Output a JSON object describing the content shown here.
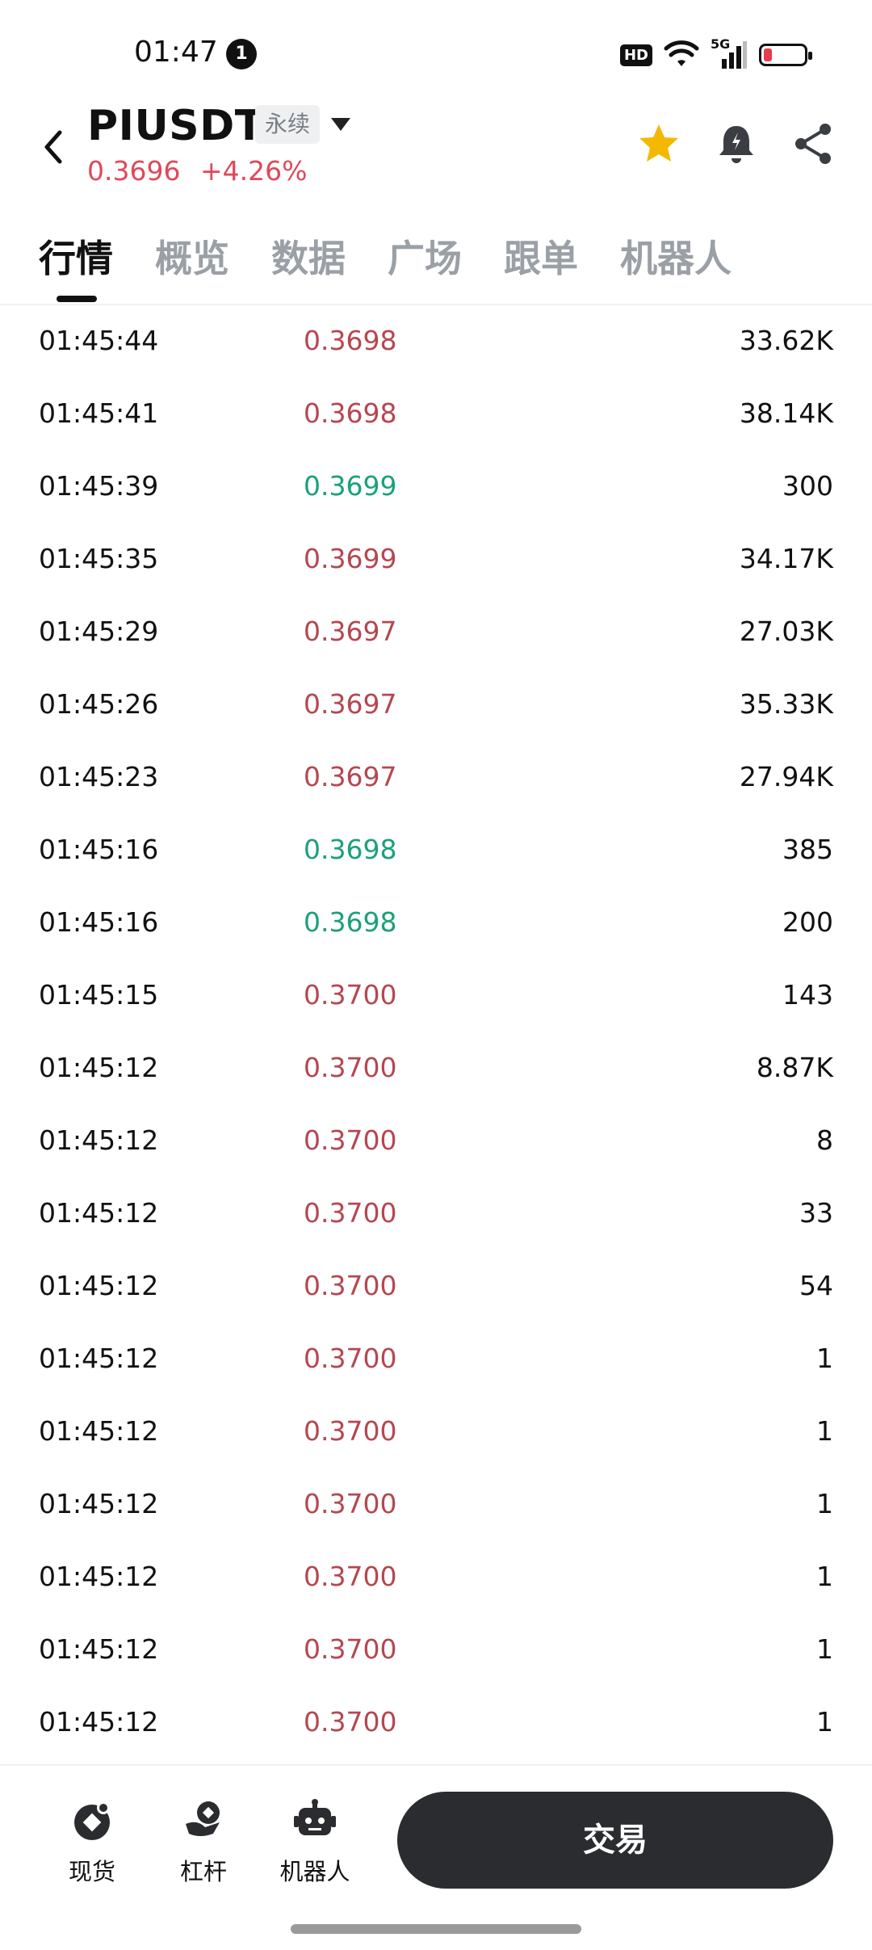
{
  "status": {
    "time": "01:47",
    "notification_count": "1",
    "hd": "HD",
    "network": "5G"
  },
  "header": {
    "symbol": "PIUSDT",
    "contract_type": "永续",
    "price": "0.3696",
    "change": "+4.26%"
  },
  "tabs": [
    "行情",
    "概览",
    "数据",
    "广场",
    "跟单",
    "机器人"
  ],
  "trades": [
    {
      "time": "01:45:44",
      "price": "0.3698",
      "size": "33.62K",
      "side": "sell"
    },
    {
      "time": "01:45:41",
      "price": "0.3698",
      "size": "38.14K",
      "side": "sell"
    },
    {
      "time": "01:45:39",
      "price": "0.3699",
      "size": "300",
      "side": "buy"
    },
    {
      "time": "01:45:35",
      "price": "0.3699",
      "size": "34.17K",
      "side": "sell"
    },
    {
      "time": "01:45:29",
      "price": "0.3697",
      "size": "27.03K",
      "side": "sell"
    },
    {
      "time": "01:45:26",
      "price": "0.3697",
      "size": "35.33K",
      "side": "sell"
    },
    {
      "time": "01:45:23",
      "price": "0.3697",
      "size": "27.94K",
      "side": "sell"
    },
    {
      "time": "01:45:16",
      "price": "0.3698",
      "size": "385",
      "side": "buy"
    },
    {
      "time": "01:45:16",
      "price": "0.3698",
      "size": "200",
      "side": "buy"
    },
    {
      "time": "01:45:15",
      "price": "0.3700",
      "size": "143",
      "side": "sell"
    },
    {
      "time": "01:45:12",
      "price": "0.3700",
      "size": "8.87K",
      "side": "sell"
    },
    {
      "time": "01:45:12",
      "price": "0.3700",
      "size": "8",
      "side": "sell"
    },
    {
      "time": "01:45:12",
      "price": "0.3700",
      "size": "33",
      "side": "sell"
    },
    {
      "time": "01:45:12",
      "price": "0.3700",
      "size": "54",
      "side": "sell"
    },
    {
      "time": "01:45:12",
      "price": "0.3700",
      "size": "1",
      "side": "sell"
    },
    {
      "time": "01:45:12",
      "price": "0.3700",
      "size": "1",
      "side": "sell"
    },
    {
      "time": "01:45:12",
      "price": "0.3700",
      "size": "1",
      "side": "sell"
    },
    {
      "time": "01:45:12",
      "price": "0.3700",
      "size": "1",
      "side": "sell"
    },
    {
      "time": "01:45:12",
      "price": "0.3700",
      "size": "1",
      "side": "sell"
    },
    {
      "time": "01:45:12",
      "price": "0.3700",
      "size": "1",
      "side": "sell"
    }
  ],
  "bottom_nav": [
    {
      "label": "现货",
      "icon": "spot-icon"
    },
    {
      "label": "杠杆",
      "icon": "margin-icon"
    },
    {
      "label": "机器人",
      "icon": "robot-icon"
    }
  ],
  "trade_button": "交易",
  "colors": {
    "sell": "#b54750",
    "buy": "#1aa17a",
    "accent_star": "#f5b800"
  }
}
